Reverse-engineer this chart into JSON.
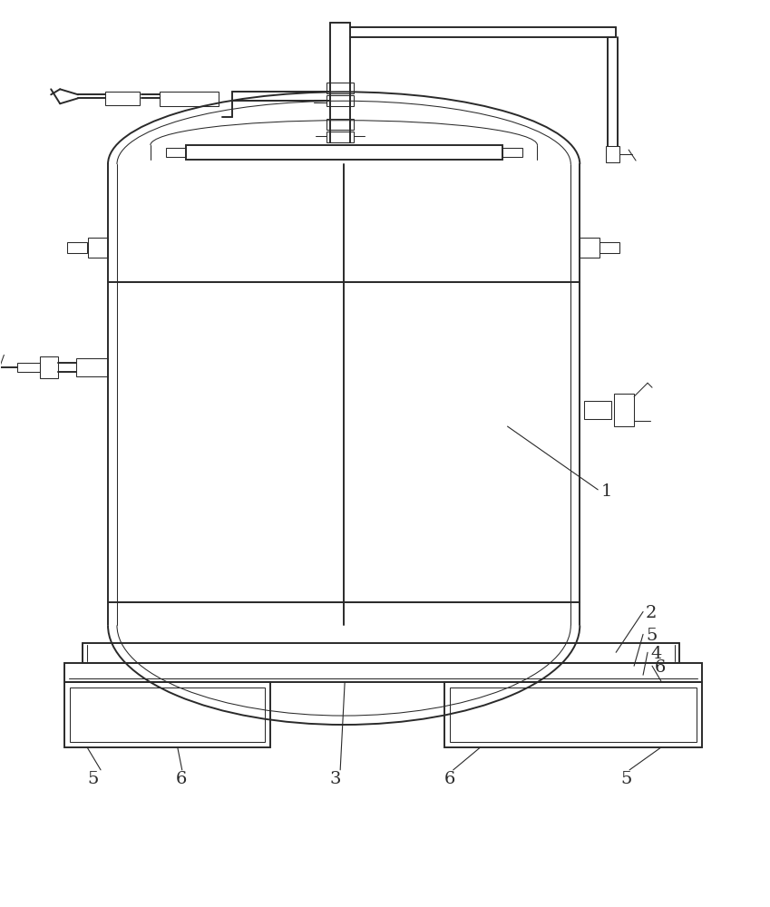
{
  "bg_color": "#ffffff",
  "line_color": "#2a2a2a",
  "lw_main": 1.4,
  "lw_thin": 0.75,
  "lw_thick": 2.0,
  "figsize": [
    8.49,
    10.0
  ],
  "dpi": 100
}
